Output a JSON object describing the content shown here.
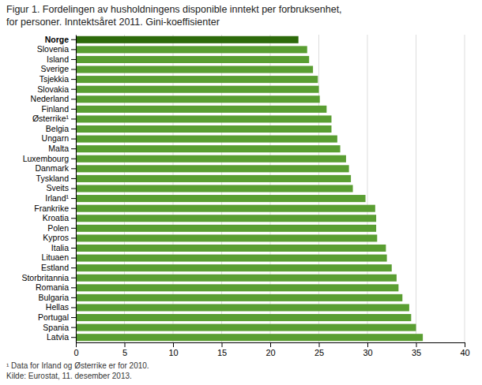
{
  "chart_data": {
    "type": "bar",
    "orientation": "horizontal",
    "title": "Figur 1. Fordelingen av husholdningens disponible inntekt per forbruksenhet,",
    "subtitle": "for personer. Inntektsåret 2011. Gini-koeffisienter",
    "annotations": [
      "¹ Data for Irland og Østerrike er for 2010.",
      "Kilde: Eurostat, 11. desember 2013."
    ],
    "categories": [
      "Norge",
      "Slovenia",
      "Island",
      "Sverige",
      "Tsjekkia",
      "Slovakia",
      "Nederland",
      "Finland",
      "Østerrike¹",
      "Belgia",
      "Ungarn",
      "Malta",
      "Luxembourg",
      "Danmark",
      "Tyskland",
      "Sveits",
      "Irland¹",
      "Frankrike",
      "Kroatia",
      "Polen",
      "Kypros",
      "Italia",
      "Lituaen",
      "Estland",
      "Storbritannia",
      "Romania",
      "Bulgaria",
      "Hellas",
      "Portugal",
      "Spania",
      "Latvia"
    ],
    "values": [
      22.9,
      23.8,
      24.0,
      24.4,
      24.9,
      25.0,
      25.1,
      25.8,
      26.3,
      26.3,
      26.9,
      27.2,
      27.8,
      28.1,
      28.3,
      28.5,
      29.8,
      30.8,
      30.9,
      30.9,
      31.0,
      31.9,
      32.0,
      32.5,
      33.0,
      33.2,
      33.6,
      34.3,
      34.5,
      35.0,
      35.7
    ],
    "colors": [
      "#2d6a0a",
      "#5a9e32",
      "#5a9e32",
      "#5a9e32",
      "#5a9e32",
      "#5a9e32",
      "#5a9e32",
      "#5a9e32",
      "#5a9e32",
      "#5a9e32",
      "#5a9e32",
      "#5a9e32",
      "#5a9e32",
      "#5a9e32",
      "#5a9e32",
      "#5a9e32",
      "#5a9e32",
      "#5a9e32",
      "#5a9e32",
      "#5a9e32",
      "#5a9e32",
      "#5a9e32",
      "#5a9e32",
      "#5a9e32",
      "#5a9e32",
      "#5a9e32",
      "#5a9e32",
      "#5a9e32",
      "#5a9e32",
      "#5a9e32",
      "#5a9e32"
    ],
    "xlim": [
      0,
      40
    ],
    "xticks": [
      0,
      5,
      10,
      15,
      20,
      25,
      30,
      35,
      40
    ],
    "grid": true
  }
}
